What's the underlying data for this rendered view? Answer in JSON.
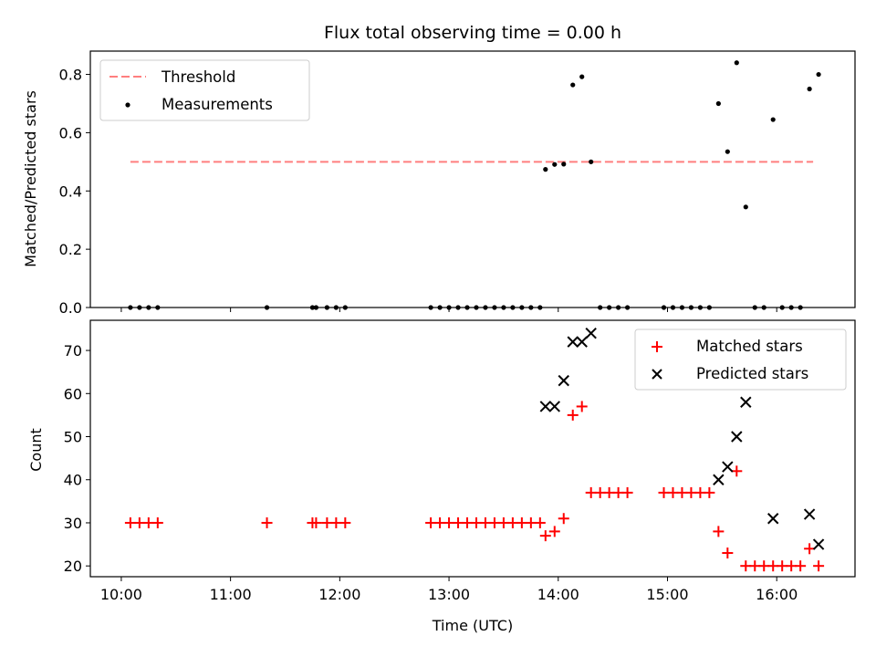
{
  "chart_data": [
    {
      "type": "scatter",
      "title": "Flux total observing time = 0.00 h",
      "ylabel": "Matched/Predicted stars",
      "xlim": [
        "09:43",
        "16:43"
      ],
      "ylim": [
        0,
        0.88
      ],
      "yticks": [
        0.0,
        0.2,
        0.4,
        0.6,
        0.8
      ],
      "ytick_labels": [
        "0.0",
        "0.2",
        "0.4",
        "0.6",
        "0.8"
      ],
      "legend_position": "upper-left",
      "series": [
        {
          "name": "Threshold",
          "kind": "dashed-line",
          "color": "#ff7f7f",
          "points": [
            {
              "x": "10:05",
              "y": 0.5
            },
            {
              "x": "16:20",
              "y": 0.5
            }
          ]
        },
        {
          "name": "Measurements",
          "kind": "dot",
          "color": "#000000",
          "points": [
            {
              "x": "10:05",
              "y": 0
            },
            {
              "x": "10:10",
              "y": 0
            },
            {
              "x": "10:15",
              "y": 0
            },
            {
              "x": "10:20",
              "y": 0
            },
            {
              "x": "11:20",
              "y": 0
            },
            {
              "x": "11:45",
              "y": 0
            },
            {
              "x": "11:47",
              "y": 0
            },
            {
              "x": "11:53",
              "y": 0
            },
            {
              "x": "11:58",
              "y": 0
            },
            {
              "x": "12:03",
              "y": 0
            },
            {
              "x": "12:50",
              "y": 0
            },
            {
              "x": "12:55",
              "y": 0
            },
            {
              "x": "13:00",
              "y": 0
            },
            {
              "x": "13:05",
              "y": 0
            },
            {
              "x": "13:10",
              "y": 0
            },
            {
              "x": "13:15",
              "y": 0
            },
            {
              "x": "13:20",
              "y": 0
            },
            {
              "x": "13:25",
              "y": 0
            },
            {
              "x": "13:30",
              "y": 0
            },
            {
              "x": "13:35",
              "y": 0
            },
            {
              "x": "13:40",
              "y": 0
            },
            {
              "x": "13:45",
              "y": 0
            },
            {
              "x": "13:50",
              "y": 0
            },
            {
              "x": "13:53",
              "y": 0.474
            },
            {
              "x": "13:58",
              "y": 0.491
            },
            {
              "x": "14:03",
              "y": 0.492
            },
            {
              "x": "14:08",
              "y": 0.764
            },
            {
              "x": "14:13",
              "y": 0.792
            },
            {
              "x": "14:18",
              "y": 0.5
            },
            {
              "x": "14:23",
              "y": 0
            },
            {
              "x": "14:28",
              "y": 0
            },
            {
              "x": "14:33",
              "y": 0
            },
            {
              "x": "14:38",
              "y": 0
            },
            {
              "x": "14:58",
              "y": 0
            },
            {
              "x": "15:03",
              "y": 0
            },
            {
              "x": "15:08",
              "y": 0
            },
            {
              "x": "15:13",
              "y": 0
            },
            {
              "x": "15:18",
              "y": 0
            },
            {
              "x": "15:23",
              "y": 0
            },
            {
              "x": "15:28",
              "y": 0.7
            },
            {
              "x": "15:33",
              "y": 0.535
            },
            {
              "x": "15:38",
              "y": 0.84
            },
            {
              "x": "15:43",
              "y": 0.345
            },
            {
              "x": "15:48",
              "y": 0
            },
            {
              "x": "15:53",
              "y": 0
            },
            {
              "x": "15:58",
              "y": 0.645
            },
            {
              "x": "16:03",
              "y": 0
            },
            {
              "x": "16:08",
              "y": 0
            },
            {
              "x": "16:13",
              "y": 0
            },
            {
              "x": "16:18",
              "y": 0.75
            },
            {
              "x": "16:23",
              "y": 0.8
            }
          ]
        }
      ]
    },
    {
      "type": "scatter",
      "xlabel": "Time (UTC)",
      "ylabel": "Count",
      "xlim": [
        "09:43",
        "16:43"
      ],
      "ylim": [
        17.5,
        77
      ],
      "xticks": [
        "10:00",
        "11:00",
        "12:00",
        "13:00",
        "14:00",
        "15:00",
        "16:00"
      ],
      "yticks": [
        20,
        30,
        40,
        50,
        60,
        70
      ],
      "ytick_labels": [
        "20",
        "30",
        "40",
        "50",
        "60",
        "70"
      ],
      "legend_position": "upper-right",
      "series": [
        {
          "name": "Matched stars",
          "kind": "plus",
          "color": "#ff0000",
          "points": [
            {
              "x": "10:05",
              "y": 30
            },
            {
              "x": "10:10",
              "y": 30
            },
            {
              "x": "10:15",
              "y": 30
            },
            {
              "x": "10:20",
              "y": 30
            },
            {
              "x": "11:20",
              "y": 30
            },
            {
              "x": "11:45",
              "y": 30
            },
            {
              "x": "11:47",
              "y": 30
            },
            {
              "x": "11:53",
              "y": 30
            },
            {
              "x": "11:58",
              "y": 30
            },
            {
              "x": "12:03",
              "y": 30
            },
            {
              "x": "12:50",
              "y": 30
            },
            {
              "x": "12:55",
              "y": 30
            },
            {
              "x": "13:00",
              "y": 30
            },
            {
              "x": "13:05",
              "y": 30
            },
            {
              "x": "13:10",
              "y": 30
            },
            {
              "x": "13:15",
              "y": 30
            },
            {
              "x": "13:20",
              "y": 30
            },
            {
              "x": "13:25",
              "y": 30
            },
            {
              "x": "13:30",
              "y": 30
            },
            {
              "x": "13:35",
              "y": 30
            },
            {
              "x": "13:40",
              "y": 30
            },
            {
              "x": "13:45",
              "y": 30
            },
            {
              "x": "13:50",
              "y": 30
            },
            {
              "x": "13:53",
              "y": 27
            },
            {
              "x": "13:58",
              "y": 28
            },
            {
              "x": "14:03",
              "y": 31
            },
            {
              "x": "14:08",
              "y": 55
            },
            {
              "x": "14:13",
              "y": 57
            },
            {
              "x": "14:18",
              "y": 37
            },
            {
              "x": "14:23",
              "y": 37
            },
            {
              "x": "14:28",
              "y": 37
            },
            {
              "x": "14:33",
              "y": 37
            },
            {
              "x": "14:38",
              "y": 37
            },
            {
              "x": "14:58",
              "y": 37
            },
            {
              "x": "15:03",
              "y": 37
            },
            {
              "x": "15:08",
              "y": 37
            },
            {
              "x": "15:13",
              "y": 37
            },
            {
              "x": "15:18",
              "y": 37
            },
            {
              "x": "15:23",
              "y": 37
            },
            {
              "x": "15:28",
              "y": 28
            },
            {
              "x": "15:33",
              "y": 23
            },
            {
              "x": "15:38",
              "y": 42
            },
            {
              "x": "15:43",
              "y": 20
            },
            {
              "x": "15:48",
              "y": 20
            },
            {
              "x": "15:53",
              "y": 20
            },
            {
              "x": "15:58",
              "y": 20
            },
            {
              "x": "16:03",
              "y": 20
            },
            {
              "x": "16:08",
              "y": 20
            },
            {
              "x": "16:13",
              "y": 20
            },
            {
              "x": "16:18",
              "y": 24
            },
            {
              "x": "16:23",
              "y": 20
            }
          ]
        },
        {
          "name": "Predicted stars",
          "kind": "x",
          "color": "#000000",
          "points": [
            {
              "x": "13:53",
              "y": 57
            },
            {
              "x": "13:58",
              "y": 57
            },
            {
              "x": "14:03",
              "y": 63
            },
            {
              "x": "14:08",
              "y": 72
            },
            {
              "x": "14:13",
              "y": 72
            },
            {
              "x": "14:18",
              "y": 74
            },
            {
              "x": "15:28",
              "y": 40
            },
            {
              "x": "15:33",
              "y": 43
            },
            {
              "x": "15:38",
              "y": 50
            },
            {
              "x": "15:43",
              "y": 58
            },
            {
              "x": "15:58",
              "y": 31
            },
            {
              "x": "16:18",
              "y": 32
            },
            {
              "x": "16:23",
              "y": 25
            }
          ]
        }
      ]
    }
  ]
}
